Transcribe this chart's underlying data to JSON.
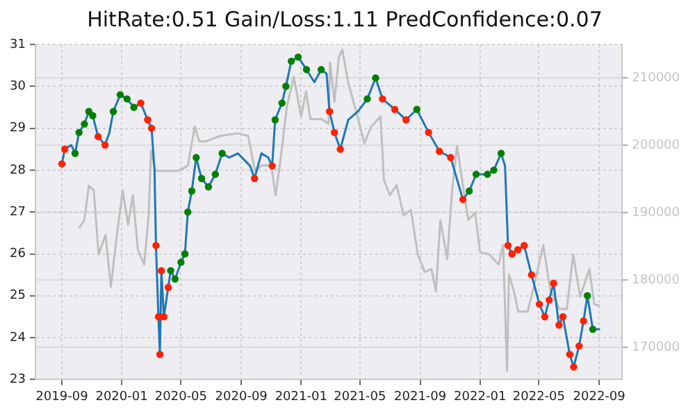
{
  "chart_data": {
    "type": "line",
    "title": "HitRate:0.51 Gain/Loss:1.11 PredConfidence:0.07",
    "grid": true,
    "legend": false,
    "xlim": [
      "2019-07-09",
      "2022-10-18"
    ],
    "xticks": [
      "2019-09",
      "2020-01",
      "2020-05",
      "2020-09",
      "2021-01",
      "2021-05",
      "2021-09",
      "2022-01",
      "2022-05",
      "2022-09"
    ],
    "ylim": [
      23,
      31
    ],
    "yticks": [
      23,
      24,
      25,
      26,
      27,
      28,
      29,
      30,
      31
    ],
    "y2lim": [
      165200,
      215000
    ],
    "y2ticks": [
      170000,
      180000,
      190000,
      200000,
      210000
    ],
    "series": [
      {
        "type": "line",
        "axis": "y2",
        "color": "#bfbfbf",
        "marker": "none",
        "x": [
          "2019-10-07",
          "2019-10-17",
          "2019-10-26",
          "2019-11-05",
          "2019-11-15",
          "2019-11-29",
          "2019-12-10",
          "2019-12-21",
          "2020-01-03",
          "2020-01-14",
          "2020-01-24",
          "2020-02-03",
          "2020-02-16",
          "2020-02-25",
          "2020-03-01",
          "2020-03-10",
          "2020-03-24",
          "2020-04-07",
          "2020-04-26",
          "2020-05-15",
          "2020-05-29",
          "2020-06-07",
          "2020-06-21",
          "2020-07-19",
          "2020-08-26",
          "2020-09-15",
          "2020-09-29",
          "2020-10-12",
          "2020-11-01",
          "2020-11-10",
          "2020-11-21",
          "2020-12-03",
          "2020-12-17",
          "2021-01-01",
          "2021-01-11",
          "2021-01-20",
          "2021-02-12",
          "2021-02-26",
          "2021-03-01",
          "2021-03-10",
          "2021-03-19",
          "2021-03-26",
          "2021-04-07",
          "2021-04-26",
          "2021-05-10",
          "2021-05-24",
          "2021-06-12",
          "2021-06-19",
          "2021-07-01",
          "2021-07-15",
          "2021-07-29",
          "2021-08-13",
          "2021-08-27",
          "2021-09-10",
          "2021-09-24",
          "2021-10-03",
          "2021-10-12",
          "2021-10-26",
          "2021-11-05",
          "2021-11-15",
          "2021-11-27",
          "2021-12-08",
          "2021-12-22",
          "2022-01-01",
          "2022-01-20",
          "2022-02-08",
          "2022-02-17",
          "2022-02-25",
          "2022-03-01",
          "2022-03-10",
          "2022-03-20",
          "2022-04-08",
          "2022-04-22",
          "2022-05-10",
          "2022-05-24",
          "2022-06-12",
          "2022-06-27",
          "2022-07-10",
          "2022-07-24",
          "2022-08-12",
          "2022-08-22",
          "2022-09-01"
        ],
        "values": [
          187800,
          188900,
          194000,
          193300,
          183800,
          186700,
          179000,
          186000,
          193300,
          188200,
          192600,
          184500,
          182300,
          189600,
          199200,
          196200,
          196200,
          196200,
          196200,
          197000,
          202800,
          200600,
          200600,
          201400,
          201800,
          201400,
          196200,
          197000,
          197000,
          192600,
          198400,
          205800,
          210200,
          204300,
          208000,
          203900,
          203900,
          203200,
          212300,
          206500,
          213100,
          214200,
          209400,
          204300,
          200300,
          202800,
          204300,
          194800,
          192600,
          194100,
          189600,
          190400,
          183800,
          181200,
          181600,
          178300,
          188900,
          183100,
          193300,
          199900,
          194100,
          188900,
          190000,
          184100,
          183800,
          182300,
          185200,
          166500,
          180800,
          178600,
          175300,
          175300,
          179400,
          185200,
          178600,
          175700,
          175700,
          183800,
          177500,
          181600,
          176400,
          176200
        ]
      },
      {
        "type": "line",
        "color": "#1f77b4",
        "marker": "none",
        "x": [
          "2019-09-01",
          "2019-09-07",
          "2019-09-20",
          "2019-09-28",
          "2019-10-06",
          "2019-10-17",
          "2019-10-26",
          "2019-11-03",
          "2019-11-14",
          "2019-11-28",
          "2019-12-07",
          "2019-12-15",
          "2019-12-29",
          "2020-01-12",
          "2020-01-26",
          "2020-02-09",
          "2020-02-23",
          "2020-03-02",
          "2020-03-08",
          "2020-03-11",
          "2020-03-16",
          "2020-03-19",
          "2020-03-22",
          "2020-03-27",
          "2020-04-05",
          "2020-04-10",
          "2020-04-19",
          "2020-05-01",
          "2020-05-09",
          "2020-05-15",
          "2020-05-23",
          "2020-06-01",
          "2020-06-12",
          "2020-06-26",
          "2020-07-10",
          "2020-07-24",
          "2020-08-07",
          "2020-08-25",
          "2020-09-19",
          "2020-09-28",
          "2020-10-12",
          "2020-10-26",
          "2020-11-03",
          "2020-11-09",
          "2020-11-23",
          "2020-12-01",
          "2020-12-12",
          "2020-12-26",
          "2021-01-12",
          "2021-01-28",
          "2021-02-11",
          "2021-02-22",
          "2021-02-28",
          "2021-03-10",
          "2021-03-22",
          "2021-04-07",
          "2021-04-27",
          "2021-05-16",
          "2021-06-02",
          "2021-06-16",
          "2021-07-11",
          "2021-08-03",
          "2021-08-25",
          "2021-09-18",
          "2021-10-10",
          "2021-11-02",
          "2021-11-27",
          "2021-12-10",
          "2021-12-24",
          "2022-01-16",
          "2022-01-29",
          "2022-02-13",
          "2022-02-21",
          "2022-02-27",
          "2022-03-07",
          "2022-03-19",
          "2022-04-01",
          "2022-04-16",
          "2022-05-02",
          "2022-05-13",
          "2022-05-22",
          "2022-05-31",
          "2022-06-11",
          "2022-06-19",
          "2022-07-03",
          "2022-07-11",
          "2022-07-22",
          "2022-07-31",
          "2022-08-08",
          "2022-08-19",
          "2022-09-01"
        ],
        "values": [
          28.15,
          28.5,
          28.6,
          28.4,
          28.9,
          29.1,
          29.4,
          29.3,
          28.8,
          28.6,
          28.9,
          29.4,
          29.8,
          29.7,
          29.5,
          29.6,
          29.2,
          29.0,
          28.0,
          26.2,
          24.5,
          23.6,
          25.6,
          24.5,
          25.2,
          25.6,
          25.4,
          25.8,
          26.0,
          27.0,
          27.5,
          28.3,
          27.8,
          27.6,
          27.9,
          28.4,
          28.3,
          28.4,
          28.1,
          27.8,
          28.4,
          28.3,
          28.1,
          29.2,
          29.6,
          30.0,
          30.6,
          30.7,
          30.4,
          30.1,
          30.4,
          30.3,
          29.4,
          28.9,
          28.5,
          29.2,
          29.4,
          29.7,
          30.2,
          29.7,
          29.45,
          29.2,
          29.45,
          28.9,
          28.45,
          28.3,
          27.3,
          27.5,
          27.9,
          27.9,
          28.0,
          28.4,
          28.1,
          26.2,
          26.0,
          26.1,
          26.2,
          25.5,
          24.8,
          24.5,
          24.9,
          25.3,
          24.3,
          24.5,
          23.6,
          23.3,
          23.8,
          24.4,
          25.0,
          24.2,
          24.2
        ]
      },
      {
        "type": "scatter",
        "color": "#008000",
        "marker": "circle",
        "x": [
          "2019-09-28",
          "2019-10-06",
          "2019-10-17",
          "2019-10-26",
          "2019-11-03",
          "2019-12-15",
          "2019-12-29",
          "2020-01-12",
          "2020-01-26",
          "2020-04-10",
          "2020-04-19",
          "2020-05-01",
          "2020-05-09",
          "2020-05-15",
          "2020-05-23",
          "2020-06-01",
          "2020-06-12",
          "2020-06-26",
          "2020-07-10",
          "2020-07-24",
          "2020-11-09",
          "2020-11-23",
          "2020-12-01",
          "2020-12-12",
          "2020-12-26",
          "2021-01-12",
          "2021-02-11",
          "2021-05-16",
          "2021-06-02",
          "2021-08-25",
          "2021-12-10",
          "2021-12-24",
          "2022-01-16",
          "2022-01-29",
          "2022-02-13",
          "2022-08-08",
          "2022-08-19"
        ],
        "values": [
          28.4,
          28.9,
          29.1,
          29.4,
          29.3,
          29.4,
          29.8,
          29.7,
          29.5,
          25.6,
          25.4,
          25.8,
          26.0,
          27.0,
          27.5,
          28.3,
          27.8,
          27.6,
          27.9,
          28.4,
          29.2,
          29.6,
          30.0,
          30.6,
          30.7,
          30.4,
          30.4,
          29.7,
          30.2,
          29.45,
          27.5,
          27.9,
          27.9,
          28.0,
          28.4,
          25.0,
          24.2
        ]
      },
      {
        "type": "scatter",
        "color": "#ff2200",
        "marker": "circle",
        "x": [
          "2019-09-01",
          "2019-09-07",
          "2019-11-14",
          "2019-11-28",
          "2020-02-09",
          "2020-02-23",
          "2020-03-02",
          "2020-03-11",
          "2020-03-16",
          "2020-03-19",
          "2020-03-22",
          "2020-03-27",
          "2020-04-05",
          "2020-09-28",
          "2020-11-03",
          "2021-02-28",
          "2021-03-10",
          "2021-03-22",
          "2021-06-16",
          "2021-07-11",
          "2021-08-03",
          "2021-09-18",
          "2021-10-10",
          "2021-11-02",
          "2021-11-27",
          "2022-02-27",
          "2022-03-07",
          "2022-03-19",
          "2022-04-01",
          "2022-04-16",
          "2022-05-02",
          "2022-05-13",
          "2022-05-22",
          "2022-05-31",
          "2022-06-11",
          "2022-06-19",
          "2022-07-03",
          "2022-07-11",
          "2022-07-22",
          "2022-07-31"
        ],
        "values": [
          28.15,
          28.5,
          28.8,
          28.6,
          29.6,
          29.2,
          29.0,
          26.2,
          24.5,
          23.6,
          25.6,
          24.5,
          25.2,
          27.8,
          28.1,
          29.4,
          28.9,
          28.5,
          29.7,
          29.45,
          29.2,
          28.9,
          28.45,
          28.3,
          27.3,
          26.2,
          26.0,
          26.1,
          26.2,
          25.5,
          24.8,
          24.5,
          24.9,
          25.3,
          24.3,
          24.5,
          23.6,
          23.3,
          23.8,
          24.4
        ]
      }
    ]
  }
}
